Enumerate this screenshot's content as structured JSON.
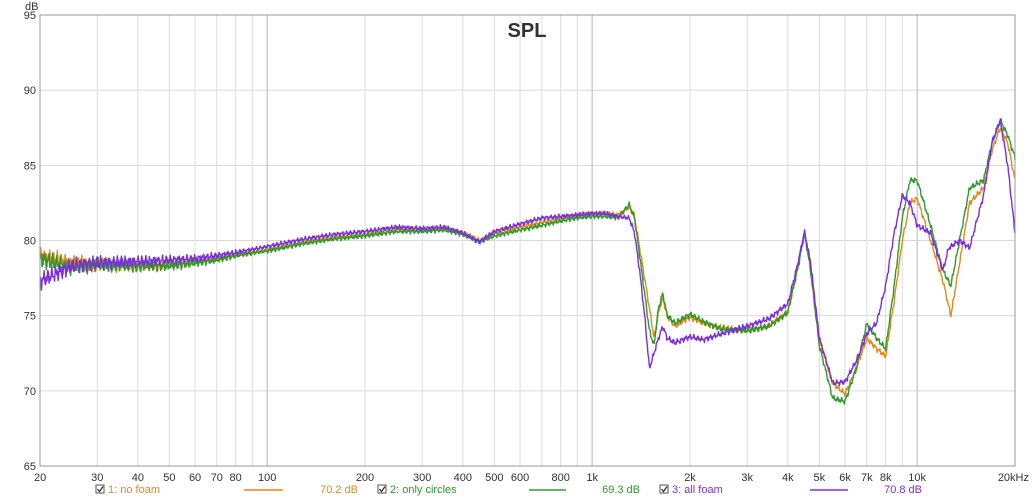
{
  "chart_data": {
    "type": "line",
    "title": "SPL",
    "ylabel": "dB",
    "xlabel": "",
    "x_scale": "log",
    "xlim": [
      20,
      20000
    ],
    "ylim": [
      65,
      95
    ],
    "grid": true,
    "y_ticks": [
      65,
      70,
      75,
      80,
      85,
      90,
      95
    ],
    "x_ticks": [
      {
        "v": 20,
        "label": "20"
      },
      {
        "v": 30,
        "label": "30"
      },
      {
        "v": 40,
        "label": "40"
      },
      {
        "v": 50,
        "label": "50"
      },
      {
        "v": 60,
        "label": "60"
      },
      {
        "v": 70,
        "label": "70"
      },
      {
        "v": 80,
        "label": "80"
      },
      {
        "v": 100,
        "label": "100"
      },
      {
        "v": 200,
        "label": "200"
      },
      {
        "v": 300,
        "label": "300"
      },
      {
        "v": 400,
        "label": "400"
      },
      {
        "v": 500,
        "label": "500"
      },
      {
        "v": 600,
        "label": "600"
      },
      {
        "v": 800,
        "label": "800"
      },
      {
        "v": 1000,
        "label": "1k"
      },
      {
        "v": 2000,
        "label": "2k"
      },
      {
        "v": 3000,
        "label": "3k"
      },
      {
        "v": 4000,
        "label": "4k"
      },
      {
        "v": 5000,
        "label": "5k"
      },
      {
        "v": 6000,
        "label": "6k"
      },
      {
        "v": 7000,
        "label": "7k"
      },
      {
        "v": 8000,
        "label": "8k"
      },
      {
        "v": 10000,
        "label": "10k"
      },
      {
        "v": 20000,
        "label": "20kHz"
      }
    ],
    "legend_position": "bottom",
    "series": [
      {
        "name": "1: no foam",
        "level": "70.2 dB",
        "color": "#e08a1e",
        "points": [
          [
            20,
            79
          ],
          [
            25,
            78.5
          ],
          [
            30,
            78.4
          ],
          [
            40,
            78.3
          ],
          [
            50,
            78.4
          ],
          [
            60,
            78.6
          ],
          [
            70,
            78.8
          ],
          [
            80,
            79
          ],
          [
            100,
            79.4
          ],
          [
            130,
            79.9
          ],
          [
            160,
            80.2
          ],
          [
            200,
            80.4
          ],
          [
            250,
            80.8
          ],
          [
            300,
            80.7
          ],
          [
            350,
            80.8
          ],
          [
            400,
            80.5
          ],
          [
            450,
            80
          ],
          [
            500,
            80.5
          ],
          [
            600,
            80.9
          ],
          [
            700,
            81.2
          ],
          [
            800,
            81.5
          ],
          [
            900,
            81.7
          ],
          [
            1000,
            81.8
          ],
          [
            1100,
            81.8
          ],
          [
            1200,
            81.7
          ],
          [
            1300,
            82.2
          ],
          [
            1350,
            81.6
          ],
          [
            1400,
            79.5
          ],
          [
            1450,
            77.5
          ],
          [
            1500,
            75.5
          ],
          [
            1550,
            73.5
          ],
          [
            1600,
            75.2
          ],
          [
            1650,
            76.2
          ],
          [
            1700,
            75
          ],
          [
            1800,
            74.3
          ],
          [
            2000,
            74.9
          ],
          [
            2200,
            74.5
          ],
          [
            2500,
            74.2
          ],
          [
            3000,
            74
          ],
          [
            3500,
            74.3
          ],
          [
            4000,
            75.3
          ],
          [
            4300,
            78.5
          ],
          [
            4500,
            80.5
          ],
          [
            4700,
            78.5
          ],
          [
            5000,
            73.5
          ],
          [
            5500,
            70.5
          ],
          [
            6000,
            69.8
          ],
          [
            6500,
            71.5
          ],
          [
            7000,
            73.5
          ],
          [
            7500,
            72.8
          ],
          [
            8000,
            72.3
          ],
          [
            8500,
            76
          ],
          [
            9000,
            80
          ],
          [
            9500,
            82.5
          ],
          [
            10000,
            82.8
          ],
          [
            11000,
            80
          ],
          [
            12000,
            77.3
          ],
          [
            12700,
            75
          ],
          [
            13500,
            78.5
          ],
          [
            14500,
            82.5
          ],
          [
            16000,
            83.5
          ],
          [
            17000,
            86
          ],
          [
            18000,
            87.5
          ],
          [
            19000,
            86.5
          ],
          [
            20000,
            84
          ]
        ]
      },
      {
        "name": "2: only circles",
        "level": "69.3 dB",
        "color": "#2e9a2e",
        "points": [
          [
            20,
            78.8
          ],
          [
            25,
            78.2
          ],
          [
            30,
            78.4
          ],
          [
            40,
            78.3
          ],
          [
            50,
            78.3
          ],
          [
            60,
            78.5
          ],
          [
            70,
            78.7
          ],
          [
            80,
            79
          ],
          [
            100,
            79.3
          ],
          [
            130,
            79.8
          ],
          [
            160,
            80.1
          ],
          [
            200,
            80.3
          ],
          [
            250,
            80.6
          ],
          [
            300,
            80.6
          ],
          [
            350,
            80.7
          ],
          [
            400,
            80.4
          ],
          [
            450,
            79.9
          ],
          [
            500,
            80.3
          ],
          [
            600,
            80.7
          ],
          [
            700,
            81
          ],
          [
            800,
            81.3
          ],
          [
            900,
            81.5
          ],
          [
            1000,
            81.6
          ],
          [
            1100,
            81.6
          ],
          [
            1200,
            81.5
          ],
          [
            1300,
            82.4
          ],
          [
            1350,
            81.5
          ],
          [
            1400,
            79
          ],
          [
            1450,
            76.5
          ],
          [
            1500,
            74
          ],
          [
            1550,
            73
          ],
          [
            1600,
            75.5
          ],
          [
            1650,
            76.5
          ],
          [
            1700,
            75
          ],
          [
            1800,
            74.5
          ],
          [
            2000,
            75.1
          ],
          [
            2200,
            74.6
          ],
          [
            2500,
            74.1
          ],
          [
            3000,
            74
          ],
          [
            3500,
            74.3
          ],
          [
            4000,
            75.2
          ],
          [
            4300,
            78.2
          ],
          [
            4500,
            80.5
          ],
          [
            4700,
            78
          ],
          [
            5000,
            73
          ],
          [
            5500,
            69.5
          ],
          [
            6000,
            69.3
          ],
          [
            6500,
            71.5
          ],
          [
            7000,
            74.5
          ],
          [
            7500,
            73.5
          ],
          [
            8000,
            72.8
          ],
          [
            8500,
            77
          ],
          [
            9000,
            81.5
          ],
          [
            9500,
            84
          ],
          [
            10000,
            84
          ],
          [
            11000,
            81
          ],
          [
            12000,
            78
          ],
          [
            12700,
            77
          ],
          [
            13500,
            80
          ],
          [
            14500,
            83.5
          ],
          [
            16000,
            84
          ],
          [
            17000,
            86.5
          ],
          [
            18000,
            88
          ],
          [
            19000,
            87
          ],
          [
            20000,
            85.5
          ]
        ]
      },
      {
        "name": "3: all foam",
        "level": "70.8 dB",
        "color": "#7b2ee0",
        "points": [
          [
            20,
            77.3
          ],
          [
            25,
            78.3
          ],
          [
            30,
            78.5
          ],
          [
            40,
            78.6
          ],
          [
            50,
            78.7
          ],
          [
            60,
            78.8
          ],
          [
            70,
            79
          ],
          [
            80,
            79.2
          ],
          [
            100,
            79.6
          ],
          [
            130,
            80.1
          ],
          [
            160,
            80.4
          ],
          [
            200,
            80.6
          ],
          [
            250,
            80.9
          ],
          [
            300,
            80.8
          ],
          [
            350,
            80.9
          ],
          [
            400,
            80.5
          ],
          [
            450,
            79.9
          ],
          [
            500,
            80.6
          ],
          [
            600,
            81.1
          ],
          [
            700,
            81.5
          ],
          [
            800,
            81.6
          ],
          [
            900,
            81.7
          ],
          [
            1000,
            81.8
          ],
          [
            1100,
            81.8
          ],
          [
            1200,
            81.6
          ],
          [
            1300,
            81.5
          ],
          [
            1350,
            80.5
          ],
          [
            1400,
            78
          ],
          [
            1450,
            75
          ],
          [
            1500,
            71.5
          ],
          [
            1550,
            72.5
          ],
          [
            1600,
            73.5
          ],
          [
            1650,
            74.3
          ],
          [
            1700,
            73.5
          ],
          [
            1800,
            73.2
          ],
          [
            2000,
            73.6
          ],
          [
            2200,
            73.4
          ],
          [
            2500,
            73.8
          ],
          [
            3000,
            74.3
          ],
          [
            3500,
            74.8
          ],
          [
            4000,
            75.8
          ],
          [
            4300,
            78.5
          ],
          [
            4500,
            80.6
          ],
          [
            4700,
            78.5
          ],
          [
            5000,
            73.5
          ],
          [
            5500,
            70.5
          ],
          [
            6000,
            70.6
          ],
          [
            6500,
            72
          ],
          [
            7000,
            73.8
          ],
          [
            7500,
            74.5
          ],
          [
            8000,
            77
          ],
          [
            8500,
            80.5
          ],
          [
            9000,
            83
          ],
          [
            9500,
            82.5
          ],
          [
            10000,
            81
          ],
          [
            11000,
            80.5
          ],
          [
            12000,
            78
          ],
          [
            12500,
            79.5
          ],
          [
            13500,
            80
          ],
          [
            14500,
            79.5
          ],
          [
            16000,
            83
          ],
          [
            17000,
            86.5
          ],
          [
            18000,
            88
          ],
          [
            19000,
            85
          ],
          [
            20000,
            80.5
          ]
        ]
      }
    ]
  }
}
